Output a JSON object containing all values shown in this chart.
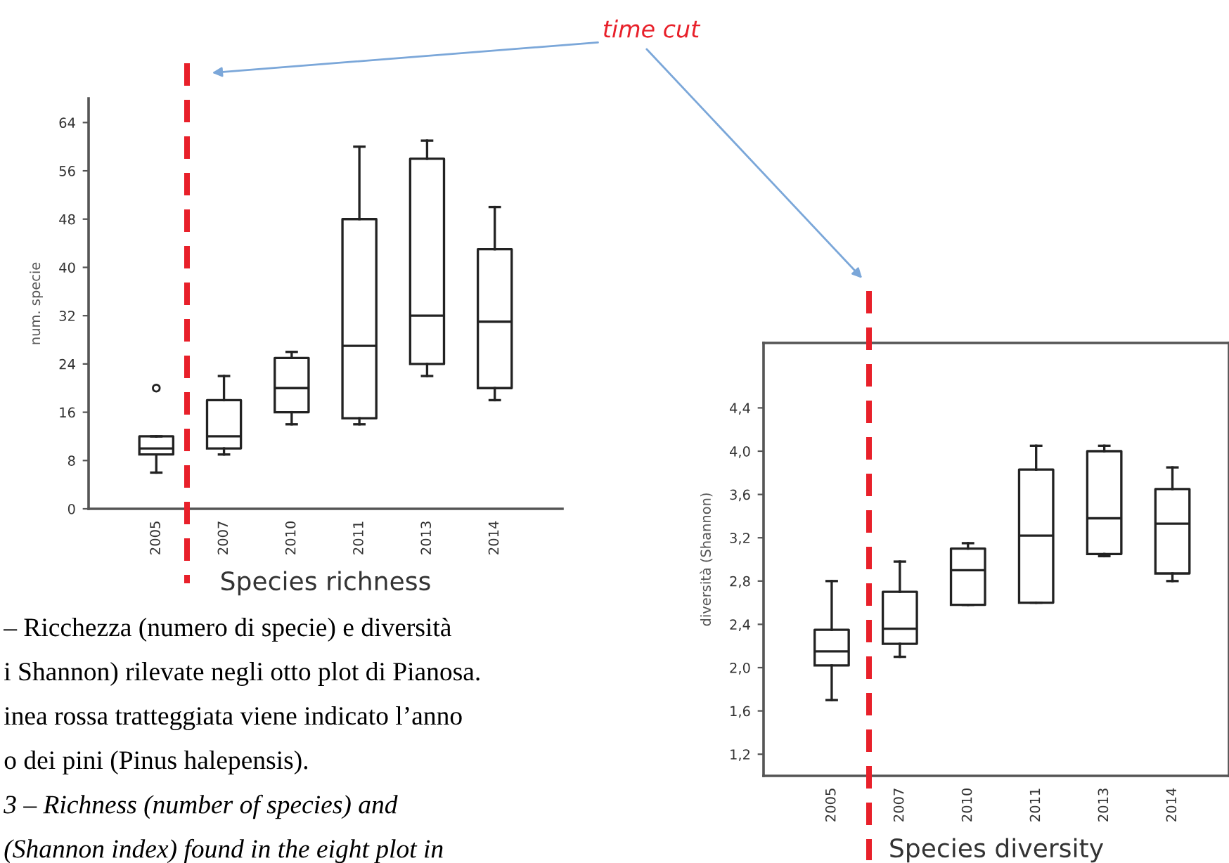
{
  "chart_data": [
    {
      "type": "box",
      "xlabel": "Species richness",
      "ylabel": "num. specie",
      "categories": [
        "2005",
        "2007",
        "2010",
        "2011",
        "2013",
        "2014"
      ],
      "boxes": [
        {
          "low": 6,
          "q1": 9,
          "median": 10,
          "q3": 12,
          "high": 12,
          "outliers": [
            20
          ]
        },
        {
          "low": 9,
          "q1": 10,
          "median": 12,
          "q3": 18,
          "high": 22
        },
        {
          "low": 14,
          "q1": 16,
          "median": 20,
          "q3": 25,
          "high": 26
        },
        {
          "low": 14,
          "q1": 15,
          "median": 27,
          "q3": 48,
          "high": 60
        },
        {
          "low": 22,
          "q1": 24,
          "median": 32,
          "q3": 58,
          "high": 61
        },
        {
          "low": 18,
          "q1": 20,
          "median": 31,
          "q3": 43,
          "high": 50
        }
      ],
      "ylim": [
        0,
        68
      ],
      "yticks": [
        0,
        8,
        16,
        24,
        32,
        40,
        48,
        56,
        64
      ],
      "annotations": [
        "time cut",
        "– Ricchezza (numero di specie) e diversità",
        "i Shannon) rilevate negli otto plot di Pianosa.",
        "inea rossa tratteggiata viene indicato l’anno",
        "o dei pini (Pinus halepensis).",
        "3 – Richness (number of species) and",
        "(Shannon index) found in the eight plot in"
      ]
    },
    {
      "type": "box",
      "xlabel": "Species diversity",
      "ylabel": "diversità (Shannon)",
      "categories": [
        "2005",
        "2007",
        "2010",
        "2011",
        "2013",
        "2014"
      ],
      "boxes": [
        {
          "low": 1.7,
          "q1": 2.02,
          "median": 2.15,
          "q3": 2.35,
          "high": 2.8
        },
        {
          "low": 2.1,
          "q1": 2.22,
          "median": 2.36,
          "q3": 2.7,
          "high": 2.98
        },
        {
          "low": 2.58,
          "q1": 2.58,
          "median": 2.9,
          "q3": 3.1,
          "high": 3.15
        },
        {
          "low": 2.6,
          "q1": 2.6,
          "median": 3.22,
          "q3": 3.83,
          "high": 4.05
        },
        {
          "low": 3.03,
          "q1": 3.05,
          "median": 3.38,
          "q3": 4.0,
          "high": 4.05
        },
        {
          "low": 2.8,
          "q1": 2.87,
          "median": 3.33,
          "q3": 3.65,
          "high": 3.85
        }
      ],
      "ylim": [
        1.0,
        5.0
      ],
      "yticks": [
        {
          "value": 1.2,
          "label": "1,2"
        },
        {
          "value": 1.6,
          "label": "1,6"
        },
        {
          "value": 2.0,
          "label": "2,0"
        },
        {
          "value": 2.4,
          "label": "2,4"
        },
        {
          "value": 2.8,
          "label": "2,8"
        },
        {
          "value": 3.2,
          "label": "3,2"
        },
        {
          "value": 3.6,
          "label": "3,6"
        },
        {
          "value": 4.0,
          "label": "4,0"
        },
        {
          "value": 4.4,
          "label": "4,4"
        }
      ]
    }
  ]
}
